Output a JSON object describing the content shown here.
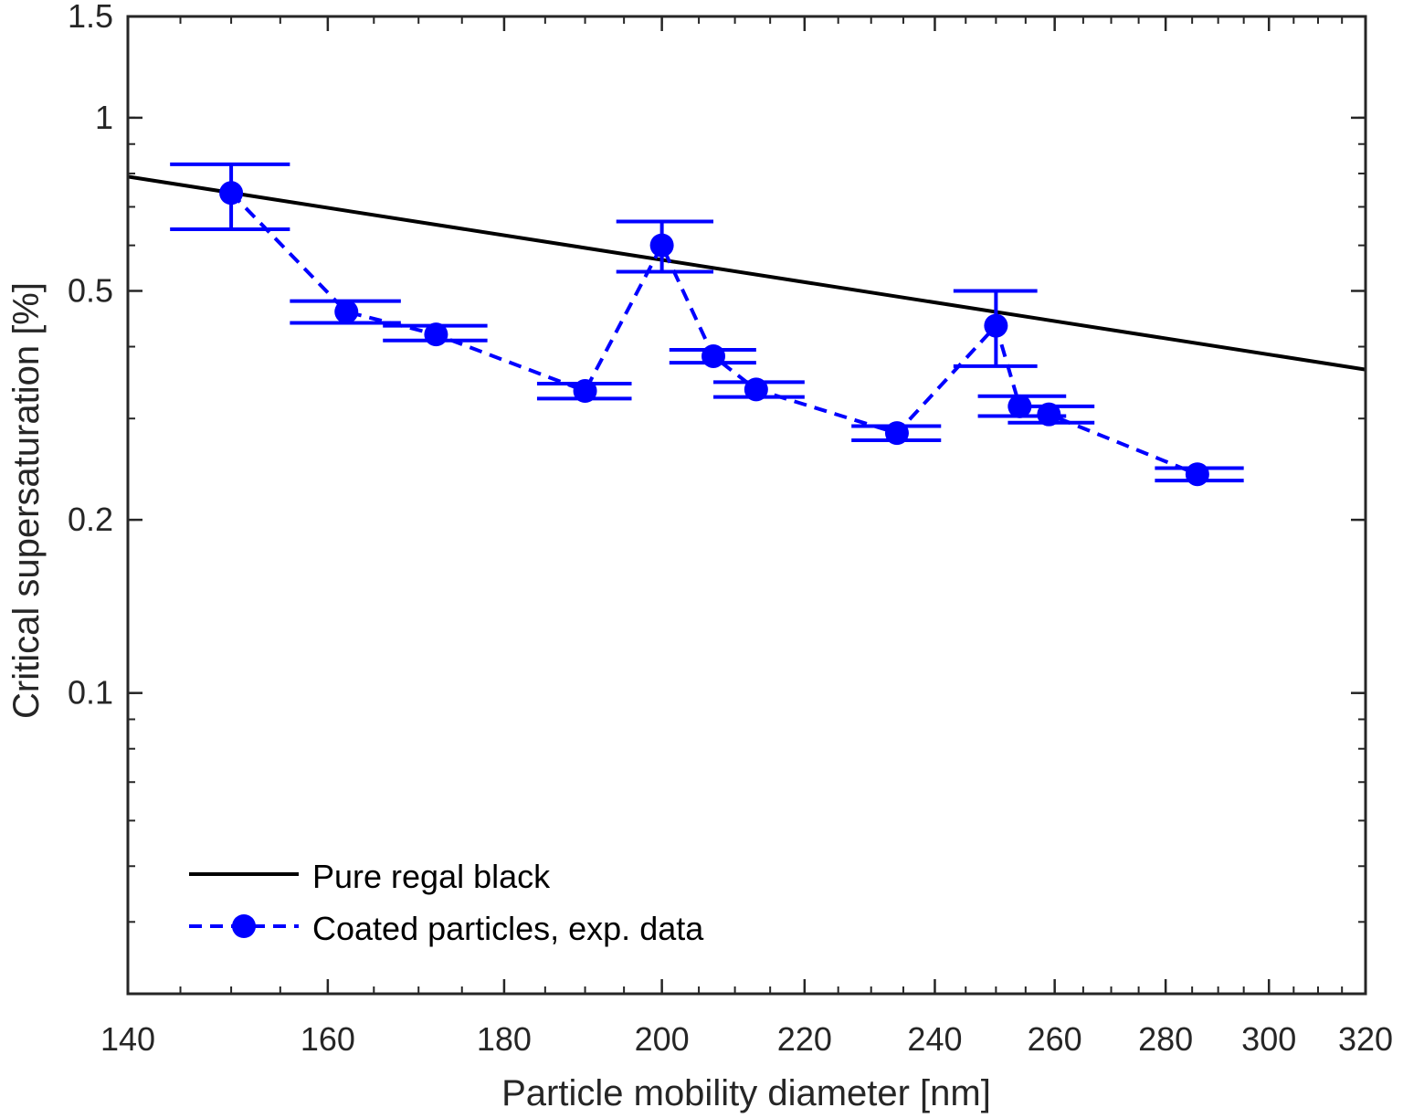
{
  "chart_data": {
    "type": "scatter",
    "title": "",
    "xlabel": "Particle mobility diameter [nm]",
    "ylabel": "Critical supersaturation [%]",
    "x_scale": "log",
    "y_scale": "log",
    "xlim": [
      140,
      320
    ],
    "ylim": [
      0.03,
      1.5
    ],
    "x_ticks": [
      140,
      160,
      180,
      200,
      220,
      240,
      260,
      280,
      300,
      320
    ],
    "x_tick_labels": [
      "140",
      "160",
      "180",
      "200",
      "220",
      "240",
      "260",
      "280",
      "300",
      "320"
    ],
    "y_ticks": [
      0.1,
      0.2,
      0.5,
      1,
      1.5
    ],
    "y_tick_labels": [
      "0.1",
      "0.2",
      "0.5",
      "1",
      "1.5"
    ],
    "grid": false,
    "legend_position": "bottom-left",
    "series": [
      {
        "name": "Pure regal black",
        "style": "solid line",
        "color": "#000000",
        "x": [
          140,
          320
        ],
        "y": [
          0.79,
          0.365
        ]
      },
      {
        "name": "Coated particles, exp. data",
        "style": "dashed line with circle markers and error bars",
        "color": "#0000FF",
        "points": [
          {
            "x": 150,
            "y": 0.74,
            "y_low": 0.64,
            "y_high": 0.83,
            "x_low": 144,
            "x_high": 156
          },
          {
            "x": 162,
            "y": 0.46,
            "y_low": 0.44,
            "y_high": 0.48,
            "x_low": 156,
            "x_high": 168
          },
          {
            "x": 172,
            "y": 0.42,
            "y_low": 0.41,
            "y_high": 0.435,
            "x_low": 166,
            "x_high": 178
          },
          {
            "x": 190,
            "y": 0.335,
            "y_low": 0.325,
            "y_high": 0.345,
            "x_low": 184,
            "x_high": 196
          },
          {
            "x": 200,
            "y": 0.6,
            "y_low": 0.54,
            "y_high": 0.66,
            "x_low": 194,
            "x_high": 207
          },
          {
            "x": 207,
            "y": 0.385,
            "y_low": 0.375,
            "y_high": 0.395,
            "x_low": 201,
            "x_high": 213
          },
          {
            "x": 213,
            "y": 0.337,
            "y_low": 0.327,
            "y_high": 0.347,
            "x_low": 207,
            "x_high": 220
          },
          {
            "x": 234,
            "y": 0.283,
            "y_low": 0.275,
            "y_high": 0.291,
            "x_low": 227,
            "x_high": 241
          },
          {
            "x": 250,
            "y": 0.435,
            "y_low": 0.37,
            "y_high": 0.5,
            "x_low": 243,
            "x_high": 257
          },
          {
            "x": 254,
            "y": 0.315,
            "y_low": 0.303,
            "y_high": 0.328,
            "x_low": 247,
            "x_high": 262
          },
          {
            "x": 259,
            "y": 0.305,
            "y_low": 0.295,
            "y_high": 0.315,
            "x_low": 252,
            "x_high": 267
          },
          {
            "x": 286,
            "y": 0.24,
            "y_low": 0.234,
            "y_high": 0.246,
            "x_low": 278,
            "x_high": 295
          }
        ]
      }
    ]
  }
}
